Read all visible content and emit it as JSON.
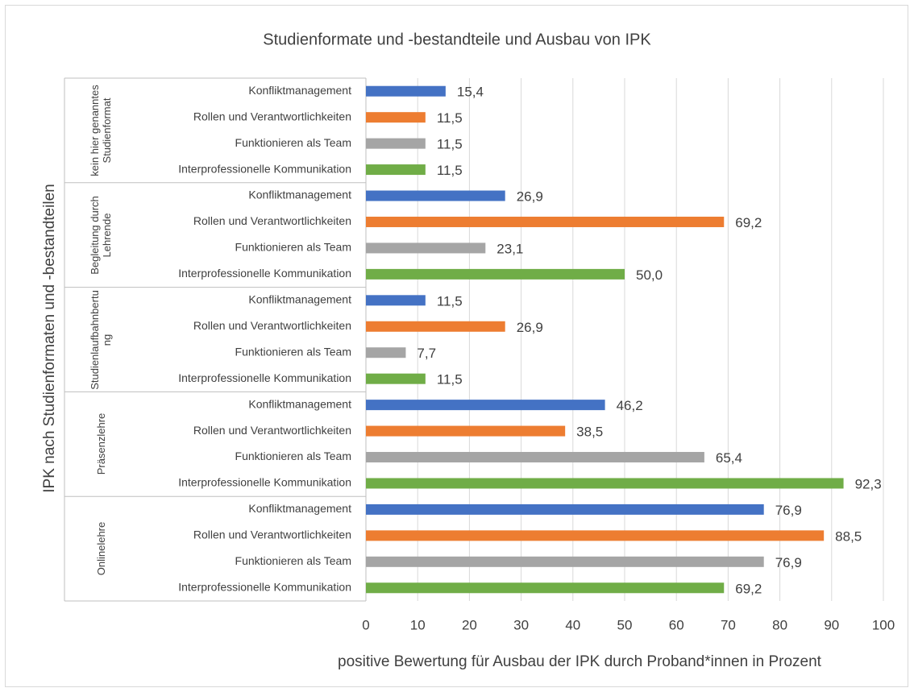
{
  "chart_data": {
    "type": "bar",
    "orientation": "horizontal",
    "title": "Studienformate und -bestandteile und Ausbau von IPK",
    "x_label": "positive Bewertung für Ausbau der IPK durch Proband*innen in Prozent",
    "y_label": "IPK nach Studienformaten und -bestandteilen",
    "categories": [
      "Konfliktmanagement",
      "Rollen und Verantwortlichkeiten",
      "Funktionieren als Team",
      "Interprofessionelle Kommunikation"
    ],
    "colors": [
      "#4472c4",
      "#ed7d31",
      "#a5a5a5",
      "#70ad47"
    ],
    "groups": [
      {
        "label": "kein hier genanntes Studienformat",
        "values": [
          15.4,
          11.5,
          11.5,
          11.5
        ],
        "value_labels": [
          "15,4",
          "11,5",
          "11,5",
          "11,5"
        ]
      },
      {
        "label": "Begleitung durch Lehrende",
        "values": [
          26.9,
          69.2,
          23.1,
          50.0
        ],
        "value_labels": [
          "26,9",
          "69,2",
          "23,1",
          "50,0"
        ]
      },
      {
        "label": "Studienlaufbahnbertung",
        "values": [
          11.5,
          26.9,
          7.7,
          11.5
        ],
        "value_labels": [
          "11,5",
          "26,9",
          "7,7",
          "11,5"
        ]
      },
      {
        "label": "Präsenzlehre",
        "values": [
          46.2,
          38.5,
          65.4,
          92.3
        ],
        "value_labels": [
          "46,2",
          "38,5",
          "65,4",
          "92,3"
        ]
      },
      {
        "label": "Onlinelehre",
        "values": [
          76.9,
          88.5,
          76.9,
          69.2
        ],
        "value_labels": [
          "76,9",
          "88,5",
          "76,9",
          "69,2"
        ]
      }
    ],
    "xlim": [
      0,
      100
    ],
    "xticks": [
      0,
      10,
      20,
      30,
      40,
      50,
      60,
      70,
      80,
      90,
      100
    ],
    "grid": true
  }
}
